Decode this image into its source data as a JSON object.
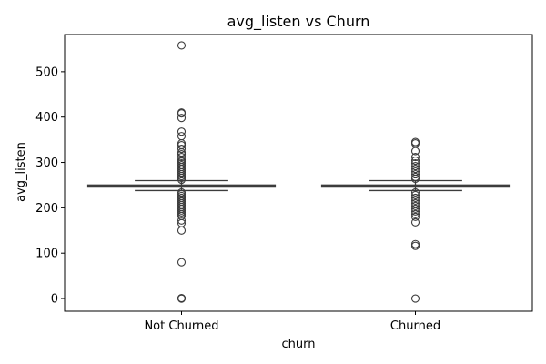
{
  "chart_data": {
    "type": "box",
    "title": "avg_listen vs Churn",
    "xlabel": "churn",
    "ylabel": "avg_listen",
    "ylim": [
      -28,
      582
    ],
    "yticks": [
      0,
      100,
      200,
      300,
      400,
      500
    ],
    "grid": false,
    "categories": [
      "Not Churned",
      "Churned"
    ],
    "boxes": [
      {
        "category": "Not Churned",
        "q1": 246,
        "median": 248,
        "q3": 250,
        "whisker_low": 238,
        "whisker_high": 260,
        "cap_low": 238,
        "cap_high": 260,
        "outliers": [
          558,
          410,
          408,
          398,
          368,
          358,
          342,
          338,
          330,
          322,
          318,
          312,
          306,
          302,
          298,
          294,
          290,
          286,
          282,
          278,
          274,
          270,
          266,
          262,
          234,
          230,
          226,
          222,
          218,
          214,
          210,
          206,
          202,
          198,
          194,
          190,
          186,
          182,
          172,
          166,
          150,
          80,
          1,
          0,
          0
        ]
      },
      {
        "category": "Churned",
        "q1": 246,
        "median": 248,
        "q3": 250,
        "whisker_low": 238,
        "whisker_high": 260,
        "cap_low": 238,
        "cap_high": 260,
        "outliers": [
          345,
          342,
          325,
          312,
          304,
          298,
          292,
          286,
          280,
          274,
          268,
          264,
          234,
          228,
          222,
          216,
          210,
          204,
          198,
          192,
          186,
          180,
          168,
          120,
          116,
          0
        ]
      }
    ],
    "colors": {
      "box_fill": "#3f72af",
      "box_edge": "#3c3c3c",
      "outlier_edge": "#3c3c3c"
    }
  }
}
